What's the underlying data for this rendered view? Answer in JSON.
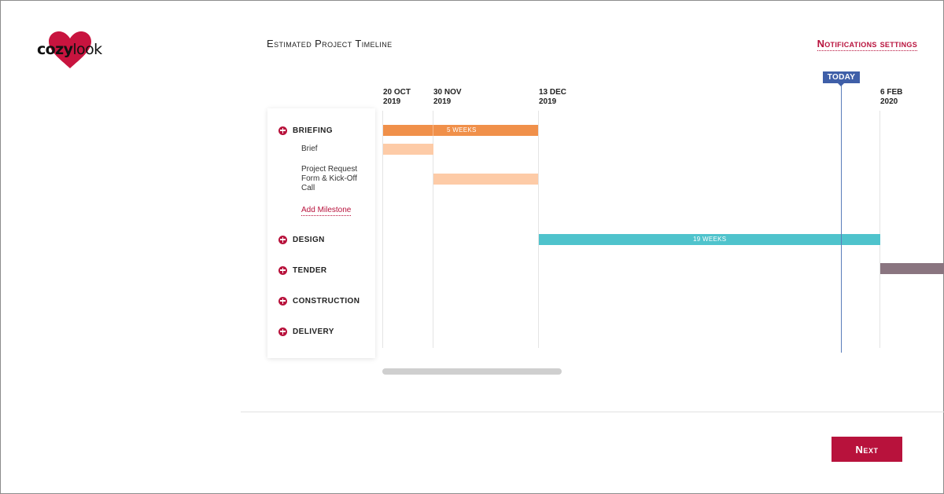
{
  "logo": {
    "part1": "cozy",
    "part2": "look",
    "heart_color": "#c8143f"
  },
  "header": {
    "title": "Estimated Project Timeline",
    "notifications_link": "Notifications settings"
  },
  "phases": [
    {
      "label": "BRIEFING"
    },
    {
      "label": "DESIGN"
    },
    {
      "label": "TENDER"
    },
    {
      "label": "CONSTRUCTION"
    },
    {
      "label": "DELIVERY"
    }
  ],
  "milestones": [
    {
      "label": "Brief"
    },
    {
      "label": "Project Request Form & Kick-Off Call"
    }
  ],
  "add_milestone": "Add Milestone",
  "dates": [
    {
      "day": "20 OCT",
      "year": "2019"
    },
    {
      "day": "30 NOV",
      "year": "2019"
    },
    {
      "day": "13 DEC",
      "year": "2019"
    },
    {
      "day": "6 FEB",
      "year": "2020"
    }
  ],
  "today_label": "TODAY",
  "bars": {
    "briefing": {
      "label": "5 WEEKS",
      "color": "#f0904a"
    },
    "brief": {
      "color": "#fdcba7"
    },
    "request_form": {
      "color": "#fdcba7"
    },
    "design": {
      "label": "19 WEEKS",
      "color": "#4fc3cc"
    },
    "tender": {
      "color": "#8a7580"
    }
  },
  "footer": {
    "next_label": "Next",
    "accent": "#b8123c"
  }
}
